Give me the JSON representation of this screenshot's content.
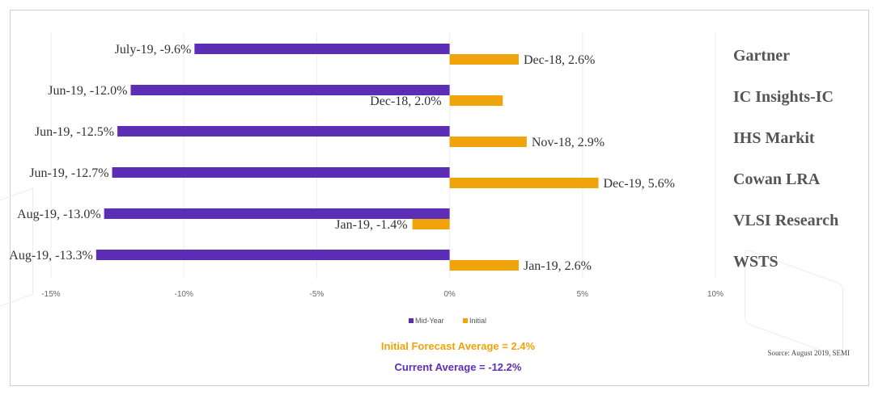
{
  "chart_data": {
    "type": "bar",
    "orientation": "horizontal",
    "categories": [
      "Gartner",
      "IC Insights-IC",
      "IHS Markit",
      "Cowan LRA",
      "VLSI Research",
      "WSTS"
    ],
    "series": [
      {
        "name": "Mid-Year",
        "color": "#5b2eb5",
        "values": [
          -9.6,
          -12.0,
          -12.5,
          -12.7,
          -13.0,
          -13.3
        ],
        "labels": [
          "July-19, -9.6%",
          "Jun-19, -12.0%",
          "Jun-19, -12.5%",
          "Jun-19, -12.7%",
          "Aug-19, -13.0%",
          "Aug-19, -13.3%"
        ]
      },
      {
        "name": "Initial",
        "color": "#f0a30a",
        "values": [
          2.6,
          2.0,
          2.9,
          5.6,
          -1.4,
          2.6
        ],
        "labels": [
          "Dec-18, 2.6%",
          "Dec-18, 2.0%",
          "Nov-18, 2.9%",
          "Dec-19, 5.6%",
          "Jan-19, -1.4%",
          "Jan-19, 2.6%"
        ]
      }
    ],
    "x_ticks": [
      "-15%",
      "-10%",
      "-5%",
      "0%",
      "5%",
      "10%"
    ],
    "xlim": [
      -15,
      10
    ],
    "grid": true,
    "legend_position": "bottom",
    "annotations": {
      "initial_average": "Initial Forecast Average = 2.4%",
      "current_average": "Current Average = -12.2%",
      "source": "Source: August 2019, SEMI"
    }
  }
}
